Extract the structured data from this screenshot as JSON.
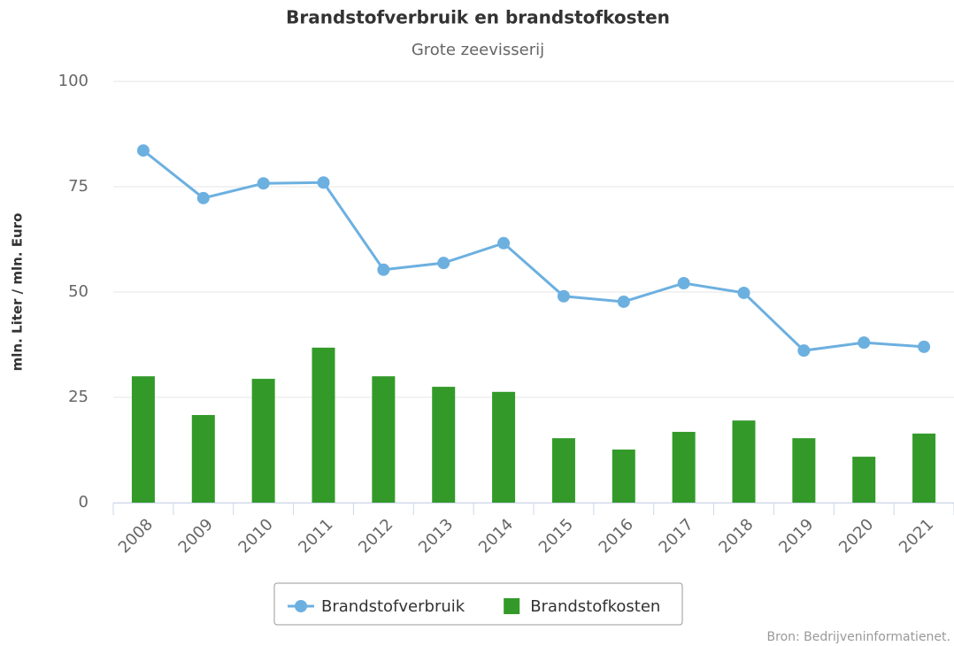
{
  "chart_data": {
    "type": "bar",
    "title": "Brandstofverbruik en brandstofkosten",
    "subtitle": "Grote zeevisserij",
    "ylabel": "mln. Liter / mln. Euro",
    "source": "Bron: Bedrijveninformatienet.",
    "categories": [
      "2008",
      "2009",
      "2010",
      "2011",
      "2012",
      "2013",
      "2014",
      "2015",
      "2016",
      "2017",
      "2018",
      "2019",
      "2020",
      "2021"
    ],
    "series": [
      {
        "name": "Brandstofverbruik",
        "type": "line",
        "color": "#6cb0e0",
        "values": [
          83.6,
          72.3,
          75.8,
          76.0,
          55.3,
          56.9,
          61.6,
          49.0,
          47.7,
          52.1,
          49.8,
          36.1,
          38.0,
          37.0
        ]
      },
      {
        "name": "Brandstofkosten",
        "type": "bar",
        "color": "#339a2a",
        "values": [
          30.0,
          20.8,
          29.4,
          36.8,
          30.0,
          27.5,
          26.3,
          15.3,
          12.6,
          16.8,
          19.5,
          15.3,
          10.9,
          16.4
        ]
      }
    ],
    "ylim": [
      0,
      100
    ],
    "yticks": [
      0,
      25,
      50,
      75,
      100
    ],
    "grid": true,
    "legend": "bottom"
  }
}
